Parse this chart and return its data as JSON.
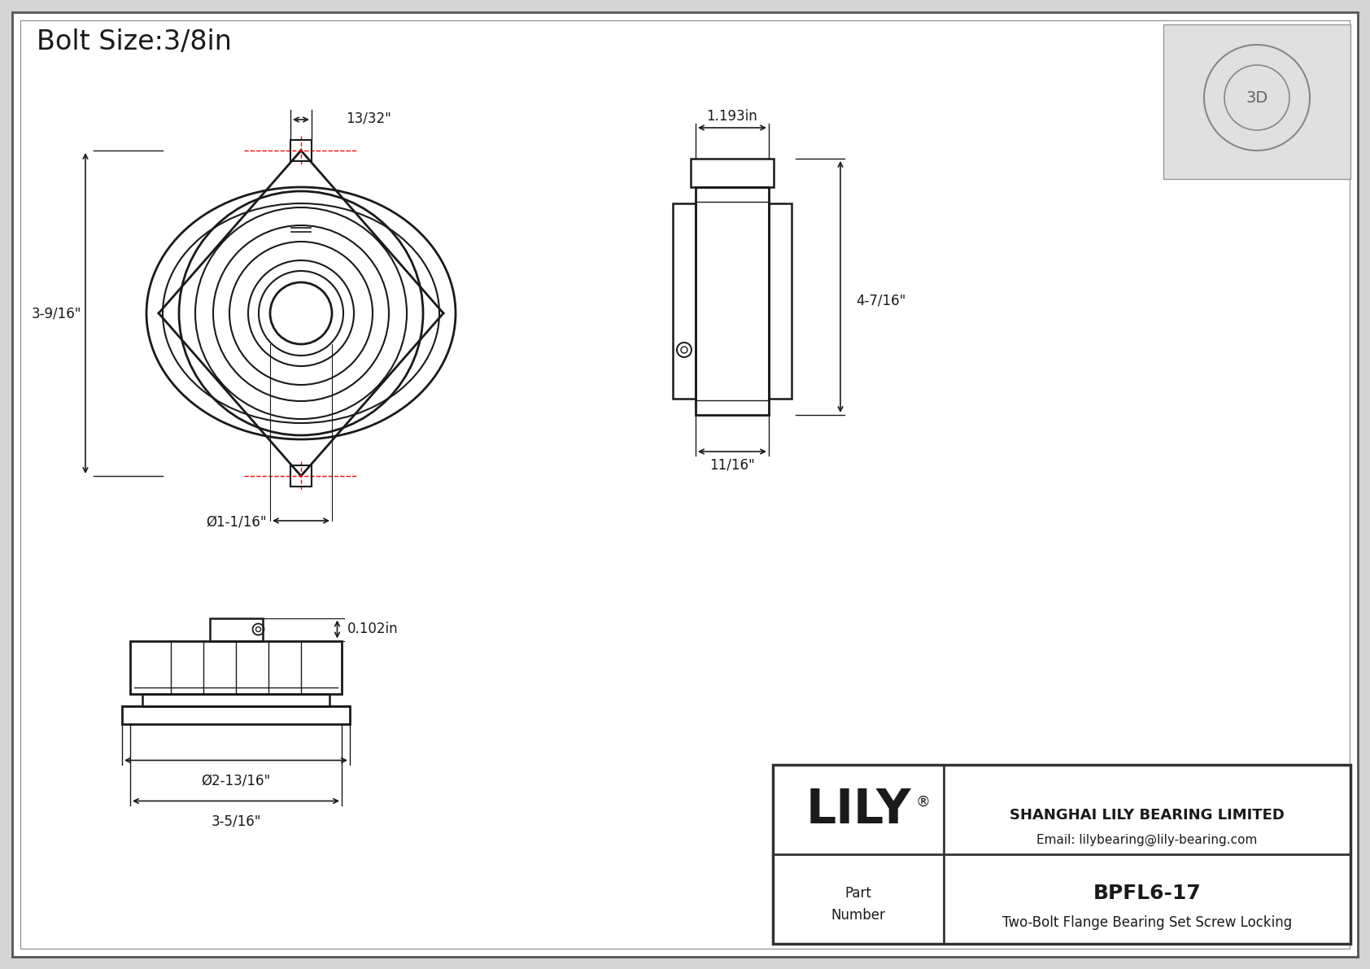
{
  "title": "Bolt Size:3/8in",
  "bg_color": "#d4d4d4",
  "white": "#ffffff",
  "lc": "#1a1a1a",
  "rc": "#ff0000",
  "part_number": "BPFL6-17",
  "part_desc": "Two-Bolt Flange Bearing Set Screw Locking",
  "company": "SHANGHAI LILY BEARING LIMITED",
  "email": "Email: lilybearing@lily-bearing.com",
  "brand": "LILY",
  "dim_bolt_hole": "13/32\"",
  "dim_height": "3-9/16\"",
  "dim_bore": "Ø1-1/16\"",
  "dim_depth": "1.193in",
  "dim_total_h": "4-7/16\"",
  "dim_flange_w": "11/16\"",
  "dim_outer_dia": "Ø2-13/16\"",
  "dim_base_w": "3-5/16\"",
  "dim_setscrew": "0.102in"
}
